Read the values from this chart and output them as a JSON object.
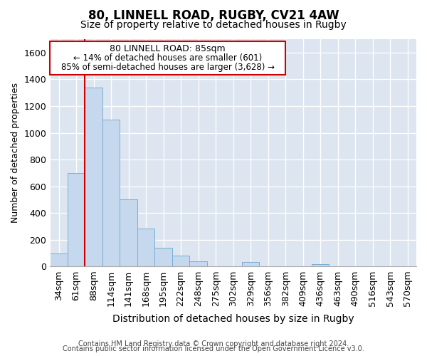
{
  "title1": "80, LINNELL ROAD, RUGBY, CV21 4AW",
  "title2": "Size of property relative to detached houses in Rugby",
  "xlabel": "Distribution of detached houses by size in Rugby",
  "ylabel": "Number of detached properties",
  "footer1": "Contains HM Land Registry data © Crown copyright and database right 2024.",
  "footer2": "Contains public sector information licensed under the Open Government Licence v3.0.",
  "annotation_line1": "80 LINNELL ROAD: 85sqm",
  "annotation_line2": "← 14% of detached houses are smaller (601)",
  "annotation_line3": "85% of semi-detached houses are larger (3,628) →",
  "bar_color": "#c5d8ee",
  "bar_edge_color": "#7aadd4",
  "annotation_box_color": "#cc0000",
  "vline_color": "#cc0000",
  "background_color": "#dde6f0",
  "categories": [
    "34sqm",
    "61sqm",
    "88sqm",
    "114sqm",
    "141sqm",
    "168sqm",
    "195sqm",
    "222sqm",
    "248sqm",
    "275sqm",
    "302sqm",
    "329sqm",
    "356sqm",
    "382sqm",
    "409sqm",
    "436sqm",
    "463sqm",
    "490sqm",
    "516sqm",
    "543sqm",
    "570sqm"
  ],
  "values": [
    100,
    700,
    1340,
    1100,
    500,
    285,
    140,
    80,
    40,
    0,
    0,
    35,
    0,
    0,
    0,
    20,
    0,
    0,
    0,
    0,
    0
  ],
  "ylim": [
    0,
    1700
  ],
  "yticks": [
    0,
    200,
    400,
    600,
    800,
    1000,
    1200,
    1400,
    1600
  ],
  "vline_x_index": 2,
  "title1_fontsize": 12,
  "title2_fontsize": 10,
  "xlabel_fontsize": 10,
  "ylabel_fontsize": 9,
  "tick_fontsize": 9,
  "footer_fontsize": 7
}
